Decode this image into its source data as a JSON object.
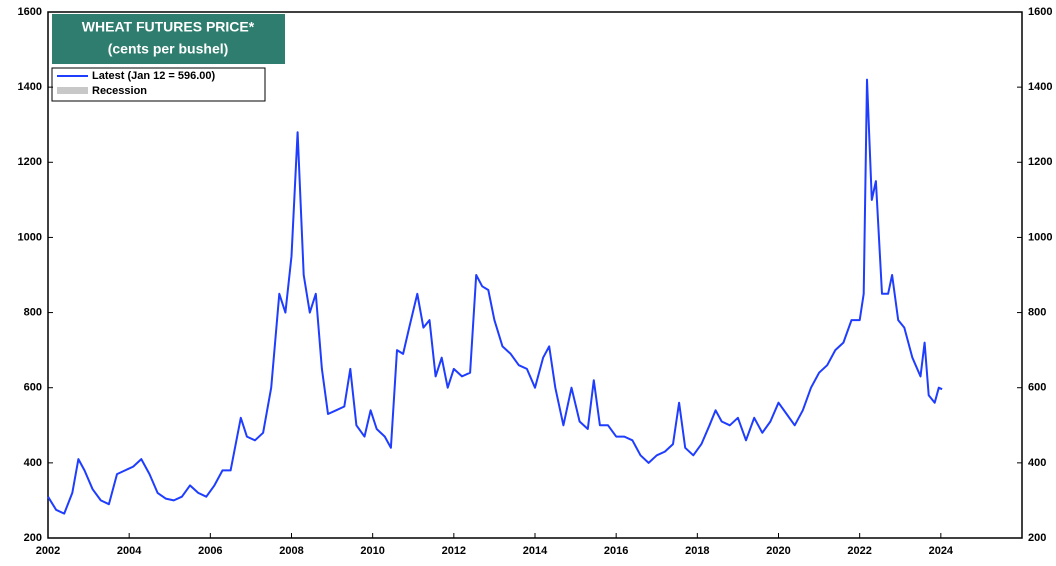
{
  "chart_data": {
    "type": "line",
    "title": "WHEAT FUTURES PRICE*",
    "subtitle": "(cents per bushel)",
    "series": [
      {
        "name": "Latest (Jan 12 = 596.00)",
        "color": "#1f3dff",
        "x": [
          2002.0,
          2002.2,
          2002.4,
          2002.6,
          2002.75,
          2002.9,
          2003.1,
          2003.3,
          2003.5,
          2003.7,
          2003.9,
          2004.1,
          2004.3,
          2004.5,
          2004.7,
          2004.9,
          2005.1,
          2005.3,
          2005.5,
          2005.7,
          2005.9,
          2006.1,
          2006.3,
          2006.5,
          2006.75,
          2006.9,
          2007.1,
          2007.3,
          2007.5,
          2007.7,
          2007.85,
          2008.0,
          2008.15,
          2008.3,
          2008.45,
          2008.6,
          2008.75,
          2008.9,
          2009.1,
          2009.3,
          2009.45,
          2009.6,
          2009.8,
          2009.95,
          2010.1,
          2010.3,
          2010.45,
          2010.6,
          2010.75,
          2010.9,
          2011.1,
          2011.25,
          2011.4,
          2011.55,
          2011.7,
          2011.85,
          2012.0,
          2012.2,
          2012.4,
          2012.55,
          2012.7,
          2012.85,
          2013.0,
          2013.2,
          2013.4,
          2013.6,
          2013.8,
          2014.0,
          2014.2,
          2014.35,
          2014.5,
          2014.7,
          2014.9,
          2015.1,
          2015.3,
          2015.45,
          2015.6,
          2015.8,
          2016.0,
          2016.2,
          2016.4,
          2016.6,
          2016.8,
          2017.0,
          2017.2,
          2017.4,
          2017.55,
          2017.7,
          2017.9,
          2018.1,
          2018.3,
          2018.45,
          2018.6,
          2018.8,
          2019.0,
          2019.2,
          2019.4,
          2019.6,
          2019.8,
          2020.0,
          2020.2,
          2020.4,
          2020.6,
          2020.8,
          2021.0,
          2021.2,
          2021.4,
          2021.6,
          2021.8,
          2022.0,
          2022.1,
          2022.18,
          2022.3,
          2022.4,
          2022.55,
          2022.7,
          2022.8,
          2022.95,
          2023.1,
          2023.3,
          2023.5,
          2023.6,
          2023.7,
          2023.85,
          2023.95,
          2024.03
        ],
        "values": [
          310,
          275,
          265,
          320,
          410,
          380,
          330,
          300,
          290,
          370,
          380,
          390,
          410,
          370,
          320,
          305,
          300,
          310,
          340,
          320,
          310,
          340,
          380,
          380,
          520,
          470,
          460,
          480,
          600,
          850,
          800,
          950,
          1280,
          900,
          800,
          850,
          650,
          530,
          540,
          550,
          650,
          500,
          470,
          540,
          490,
          470,
          440,
          700,
          690,
          760,
          850,
          760,
          780,
          630,
          680,
          600,
          650,
          630,
          640,
          900,
          870,
          860,
          780,
          710,
          690,
          660,
          650,
          600,
          680,
          710,
          600,
          500,
          600,
          510,
          490,
          620,
          500,
          500,
          470,
          470,
          460,
          420,
          400,
          420,
          430,
          450,
          560,
          440,
          420,
          450,
          500,
          540,
          510,
          500,
          520,
          460,
          520,
          480,
          510,
          560,
          530,
          500,
          540,
          600,
          640,
          660,
          700,
          720,
          780,
          780,
          850,
          1420,
          1100,
          1150,
          850,
          850,
          900,
          780,
          760,
          680,
          630,
          720,
          580,
          560,
          600,
          596
        ]
      }
    ],
    "recession": {
      "name": "Recession",
      "color": "#c8c8c8"
    },
    "xlim": [
      2002,
      2026
    ],
    "xticks": [
      2002,
      2004,
      2006,
      2008,
      2010,
      2012,
      2014,
      2016,
      2018,
      2020,
      2022,
      2024
    ],
    "ylim": [
      200,
      1600
    ],
    "yticks": [
      200,
      400,
      600,
      800,
      1000,
      1200,
      1400,
      1600
    ],
    "title_color": "#2e7d6e"
  }
}
